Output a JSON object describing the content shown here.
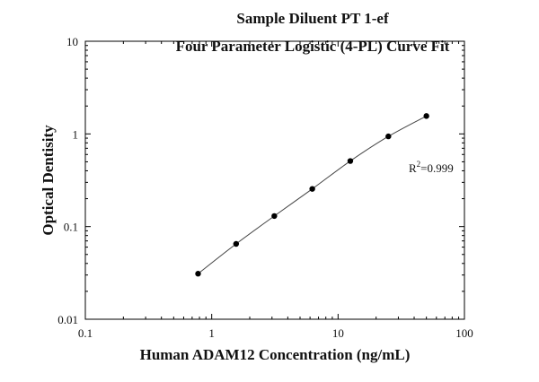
{
  "chart_data": {
    "type": "scatter",
    "title": "Sample Diluent PT 1-ef",
    "subtitle": "Four Parameter Logistic (4-PL) Curve Fit",
    "xlabel": "Human ADAM12 Concentration (ng/mL)",
    "ylabel": "Optical Dentisity",
    "xscale": "log",
    "yscale": "log",
    "xlim": [
      0.1,
      100
    ],
    "ylim": [
      0.01,
      10
    ],
    "x_ticks": [
      {
        "value": 0.1,
        "label": "0.1"
      },
      {
        "value": 1,
        "label": "1"
      },
      {
        "value": 10,
        "label": "10"
      },
      {
        "value": 100,
        "label": "100"
      }
    ],
    "y_ticks": [
      {
        "value": 0.01,
        "label": "0.01"
      },
      {
        "value": 0.1,
        "label": "0.1"
      },
      {
        "value": 1,
        "label": "1"
      },
      {
        "value": 10,
        "label": "10"
      }
    ],
    "grid": false,
    "annotation": {
      "prefix": "R",
      "superscript": "2",
      "suffix": "=0.999"
    },
    "series": [
      {
        "x": [
          0.78,
          1.56,
          3.13,
          6.25,
          12.5,
          25,
          50
        ],
        "y": [
          0.031,
          0.065,
          0.13,
          0.255,
          0.51,
          0.94,
          1.56
        ],
        "color": "#000000"
      }
    ]
  }
}
